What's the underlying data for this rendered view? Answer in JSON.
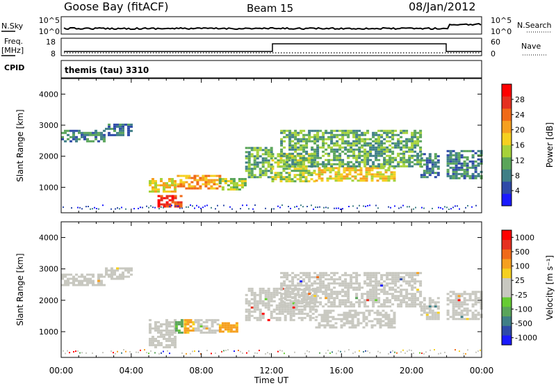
{
  "header": {
    "station": "Goose Bay (fitACF)",
    "beam": "Beam 15",
    "date": "08/Jan/2012"
  },
  "strip": {
    "nsky_label": "N.Sky",
    "nsearch_label": "N.Search",
    "noise_ticks": [
      "10^5",
      "10^0"
    ],
    "freq_label": "Freq.",
    "freq_unit": "[MHz]",
    "freq_ticks": [
      "18",
      "8"
    ],
    "nave_label": "Nave",
    "nave_ticks": [
      "60",
      "0"
    ],
    "cpid_label": "CPID",
    "cpid_value": "themis (tau) 3310"
  },
  "colors": {
    "frame": "#000000",
    "ground_scatter": "#c8c8c0"
  },
  "chart_data": [
    {
      "type": "heatmap",
      "panel": "power",
      "ylabel": "Slant Range [km]",
      "yticks": [
        1000,
        2000,
        3000,
        4000
      ],
      "ylim": [
        180,
        4500
      ],
      "xlim": [
        0,
        24
      ],
      "colorbar": {
        "label": "Power [dB]",
        "ticks": [
          "4",
          "8",
          "12",
          "16",
          "20",
          "24",
          "28"
        ],
        "colors": [
          "#1a1aff",
          "#2e4aa8",
          "#3f7f86",
          "#5aa55a",
          "#a6d23a",
          "#f5d020",
          "#f6a020",
          "#f06a18",
          "#e53020",
          "#ff0000"
        ]
      },
      "regions": [
        {
          "t0": 0.0,
          "t1": 2.5,
          "r0": 2500,
          "r1": 2850,
          "level": 2
        },
        {
          "t0": 2.5,
          "t1": 4.0,
          "r0": 2700,
          "r1": 3050,
          "level": 2
        },
        {
          "t0": 5.0,
          "t1": 6.5,
          "r0": 850,
          "r1": 1300,
          "level": 5
        },
        {
          "t0": 5.5,
          "t1": 6.8,
          "r0": 350,
          "r1": 750,
          "level": 8
        },
        {
          "t0": 6.6,
          "t1": 9.0,
          "r0": 950,
          "r1": 1400,
          "level": 6
        },
        {
          "t0": 9.0,
          "t1": 10.5,
          "r0": 950,
          "r1": 1300,
          "level": 4
        },
        {
          "t0": 10.5,
          "t1": 12.0,
          "r0": 1300,
          "r1": 2300,
          "level": 3
        },
        {
          "t0": 12.0,
          "t1": 14.5,
          "r0": 1200,
          "r1": 2100,
          "level": 4
        },
        {
          "t0": 14.5,
          "t1": 19.0,
          "r0": 1200,
          "r1": 1650,
          "level": 5
        },
        {
          "t0": 12.5,
          "t1": 20.5,
          "r0": 1700,
          "r1": 2850,
          "level": 3
        },
        {
          "t0": 20.5,
          "t1": 21.5,
          "r0": 1350,
          "r1": 2100,
          "level": 2
        },
        {
          "t0": 22.0,
          "t1": 24.0,
          "r0": 1300,
          "r1": 2200,
          "level": 2
        }
      ]
    },
    {
      "type": "heatmap",
      "panel": "velocity",
      "ylabel": "Slant Range [km]",
      "xlabel": "Time UT",
      "yticks": [
        1000,
        2000,
        3000,
        4000
      ],
      "ylim": [
        180,
        4500
      ],
      "xlim": [
        0,
        24
      ],
      "xticks": [
        "00:00",
        "04:00",
        "08:00",
        "12:00",
        "16:00",
        "20:00",
        "00:00"
      ],
      "colorbar": {
        "label": "Velocity [m s⁻¹]",
        "ticks": [
          "1000",
          "500",
          "100",
          "25",
          "-25",
          "-100",
          "-500",
          "-1000"
        ],
        "colors": [
          "#1a1aff",
          "#2e4aa8",
          "#3f7f86",
          "#5aa55a",
          "#66cc33",
          "#c8c8c0",
          "#c8c8c0",
          "#f5d020",
          "#f6a020",
          "#f06a18",
          "#e53020",
          "#ff0000"
        ]
      },
      "regions": [
        {
          "t0": 0.0,
          "t1": 2.5,
          "r0": 2500,
          "r1": 2850,
          "kind": "gs"
        },
        {
          "t0": 2.5,
          "t1": 4.0,
          "r0": 2700,
          "r1": 3050,
          "kind": "gs"
        },
        {
          "t0": 5.0,
          "t1": 6.5,
          "r0": 500,
          "r1": 1400,
          "kind": "gs"
        },
        {
          "t0": 6.5,
          "t1": 6.9,
          "r0": 1000,
          "r1": 1400,
          "kind": "green"
        },
        {
          "t0": 7.0,
          "t1": 7.6,
          "r0": 1000,
          "r1": 1400,
          "kind": "orange"
        },
        {
          "t0": 7.6,
          "t1": 9.0,
          "r0": 1000,
          "r1": 1400,
          "kind": "gs"
        },
        {
          "t0": 9.0,
          "t1": 10.0,
          "r0": 1000,
          "r1": 1300,
          "kind": "orange"
        },
        {
          "t0": 10.5,
          "t1": 14.5,
          "r0": 1400,
          "r1": 2400,
          "kind": "gs"
        },
        {
          "t0": 14.5,
          "t1": 19.0,
          "r0": 1150,
          "r1": 1700,
          "kind": "gs"
        },
        {
          "t0": 12.5,
          "t1": 20.5,
          "r0": 1800,
          "r1": 2900,
          "kind": "gs"
        },
        {
          "t0": 20.5,
          "t1": 21.5,
          "r0": 1400,
          "r1": 2100,
          "kind": "gs"
        },
        {
          "t0": 22.0,
          "t1": 24.0,
          "r0": 1400,
          "r1": 2300,
          "kind": "gs"
        }
      ]
    }
  ]
}
